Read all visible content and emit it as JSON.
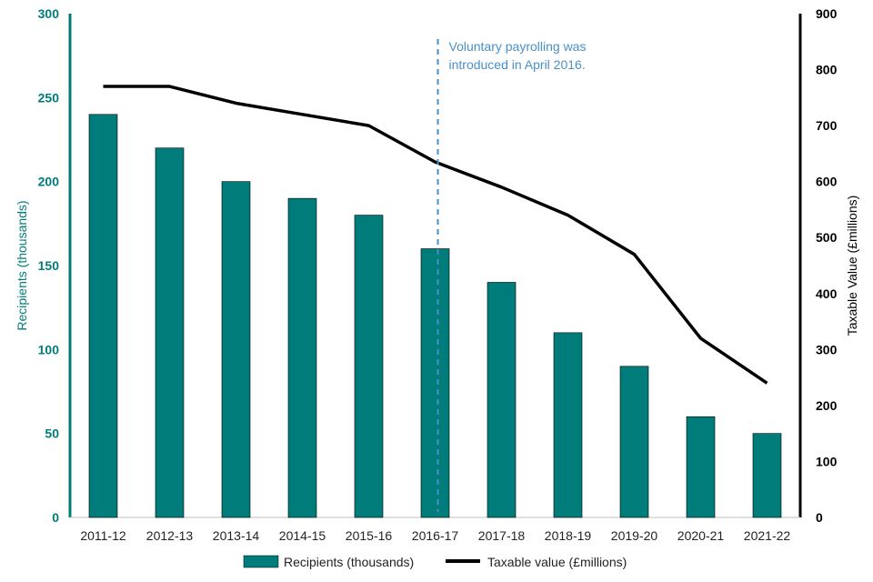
{
  "chart_data": {
    "type": "bar",
    "title": "",
    "categories": [
      "2011-12",
      "2012-13",
      "2013-14",
      "2014-15",
      "2015-16",
      "2016-17",
      "2017-18",
      "2018-19",
      "2019-20",
      "2020-21",
      "2021-22"
    ],
    "series": [
      {
        "name": "Recipients (thousands)",
        "type": "bar",
        "axis": "left",
        "values": [
          240,
          220,
          200,
          190,
          180,
          160,
          140,
          110,
          90,
          60,
          50
        ]
      },
      {
        "name": "Taxable value (£millions)",
        "type": "line",
        "axis": "right",
        "values": [
          770,
          770,
          740,
          720,
          700,
          635,
          590,
          540,
          470,
          320,
          240
        ]
      }
    ],
    "ylabel": "Recipients (thousands)",
    "ylim": [
      0,
      300
    ],
    "yticks": [
      0,
      50,
      100,
      150,
      200,
      250,
      300
    ],
    "y2label": "Taxable Value (£millions)",
    "y2lim": [
      0,
      900
    ],
    "y2ticks": [
      0,
      100,
      200,
      300,
      400,
      500,
      600,
      700,
      800,
      900
    ],
    "annotation": {
      "lines": [
        "Voluntary payrolling was",
        "introduced in April 2016."
      ],
      "category": "2016-17"
    },
    "legend_position": "bottom",
    "colors": {
      "bars": "#007d7a",
      "line": "#000000",
      "left_axis": "#007d7a",
      "annotation": "#4a90c8"
    }
  }
}
